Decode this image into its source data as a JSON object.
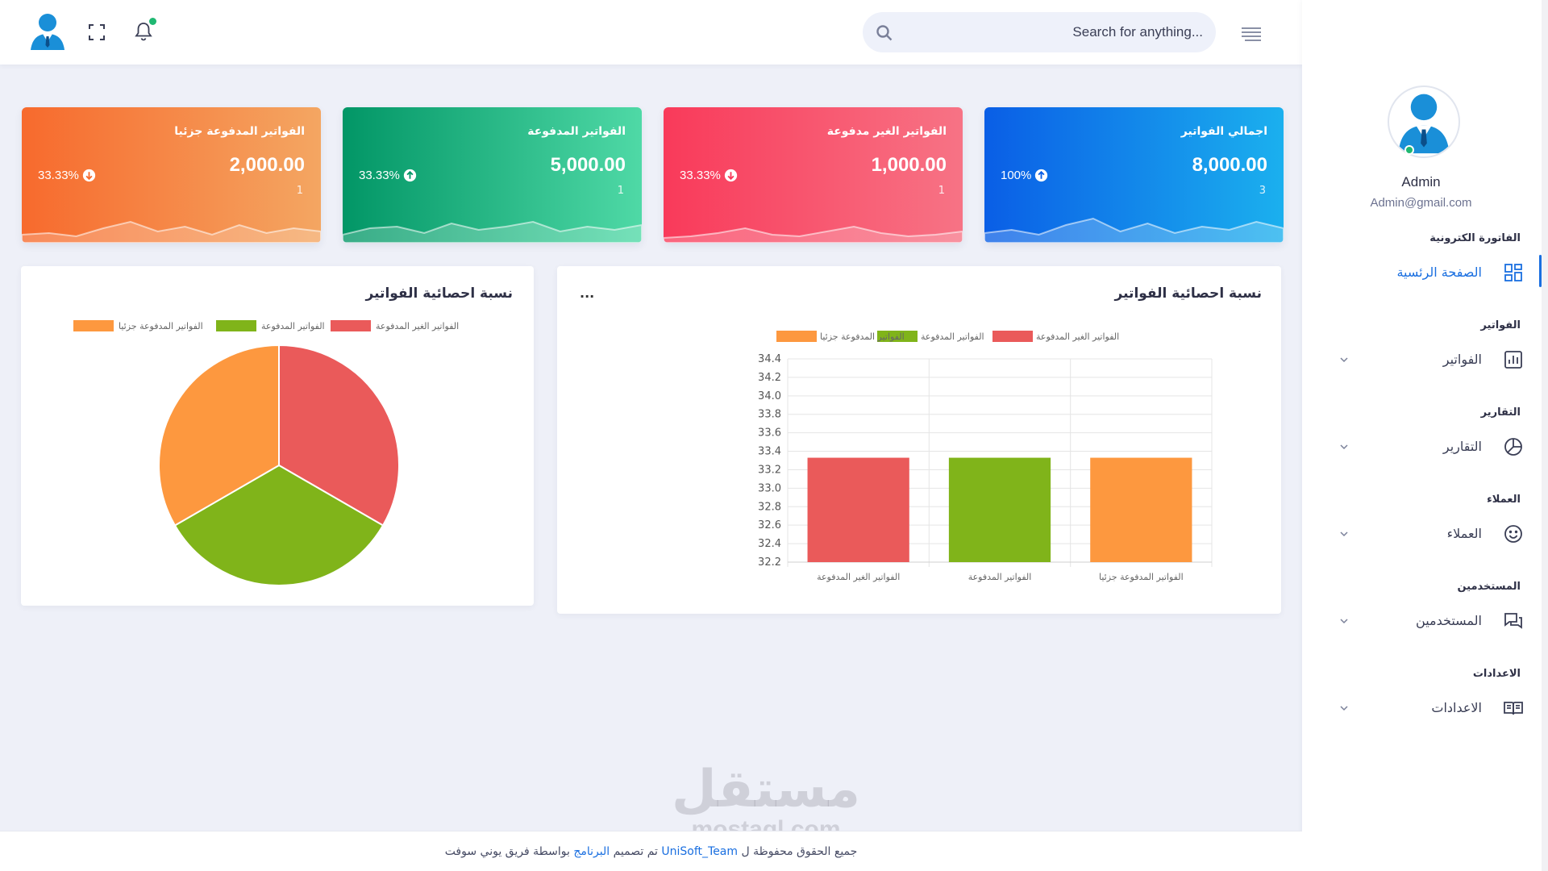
{
  "header": {
    "search_placeholder": "Search for anything...",
    "icons": [
      "avatar-icon",
      "fullscreen-icon",
      "bell-icon",
      "search-icon",
      "hamburger-icon"
    ]
  },
  "cards": [
    {
      "title": "اجمالي الفواتير",
      "amount": "8,000.00",
      "count": "3",
      "percent": "100%",
      "trend": "up",
      "gradient": [
        "#0a5ee6",
        "#1bb0ee"
      ],
      "wave": [
        12,
        16,
        10,
        22,
        30,
        14,
        24,
        12,
        20,
        16,
        26,
        18
      ]
    },
    {
      "title": "الفواتير الغير مدفوعة",
      "amount": "1,000.00",
      "count": "1",
      "percent": "33.33%",
      "trend": "down",
      "gradient": [
        "#f93a5a",
        "#f77385"
      ],
      "wave": [
        6,
        8,
        12,
        18,
        10,
        8,
        14,
        20,
        12,
        8,
        10,
        14
      ]
    },
    {
      "title": "الفواتير المدفوعة",
      "amount": "5,000.00",
      "count": "1",
      "percent": "33.33%",
      "trend": "up",
      "gradient": [
        "#029666",
        "#4fd9a6"
      ],
      "wave": [
        10,
        18,
        20,
        12,
        24,
        16,
        20,
        26,
        14,
        20,
        16,
        22
      ]
    },
    {
      "title": "الفواتير المدفوعة جزئيا",
      "amount": "2,000.00",
      "count": "1",
      "percent": "33.33%",
      "trend": "down",
      "gradient": [
        "#f76a2d",
        "#f4a662"
      ],
      "wave": [
        10,
        12,
        8,
        18,
        26,
        14,
        20,
        10,
        22,
        12,
        18,
        14
      ]
    }
  ],
  "bar_panel": {
    "title": "نسبة احصائية الفواتير",
    "more": "..."
  },
  "pie_panel": {
    "title": "نسبة احصائية الفواتير"
  },
  "chart_data": [
    {
      "type": "bar",
      "categories": [
        "الفواتير الغير المدفوعة",
        "الفواتير المدفوعة",
        "الفواتير المدفوعة جزئيا"
      ],
      "values": [
        33.33,
        33.33,
        33.33
      ],
      "colors": [
        "#ea5a5a",
        "#80b41a",
        "#fd983f"
      ],
      "legend": [
        "الفواتير الغير المدفوعة",
        "الفواتير المدفوعة",
        "الفواتير المدفوعة جزئيا"
      ],
      "legend_position": "top",
      "yticks": [
        "34.4",
        "34.2",
        "34.0",
        "33.8",
        "33.6",
        "33.4",
        "33.2",
        "33.0",
        "32.8",
        "32.6",
        "32.4",
        "32.2"
      ],
      "ylim": [
        32.2,
        34.4
      ],
      "grid": true
    },
    {
      "type": "pie",
      "labels": [
        "الفواتير الغير المدفوعة",
        "الفواتير المدفوعة",
        "الفواتير المدفوعة جزئيا"
      ],
      "values": [
        33.33,
        33.33,
        33.33
      ],
      "colors": [
        "#ea5a5a",
        "#80b41a",
        "#fd983f"
      ],
      "legend": [
        "الفواتير الغير المدفوعة",
        "الفواتير المدفوعة",
        "الفواتير المدفوعة جزئيا"
      ],
      "legend_position": "top"
    }
  ],
  "sidebar": {
    "user": {
      "name": "Admin",
      "email": "Admin@gmail.com"
    },
    "sections": [
      {
        "title": "الفاتورة الكترونية",
        "item": "الصفحة الرئسية",
        "icon": "dashboard-icon",
        "active": true,
        "expandable": false
      },
      {
        "title": "الفواتير",
        "item": "الفواتير",
        "icon": "bar-chart-icon",
        "active": false,
        "expandable": true
      },
      {
        "title": "التقارير",
        "item": "التقارير",
        "icon": "pie-chart-icon",
        "active": false,
        "expandable": true
      },
      {
        "title": "العملاء",
        "item": "العملاء",
        "icon": "smiley-icon",
        "active": false,
        "expandable": true
      },
      {
        "title": "المستخدمين",
        "item": "المستخدمين",
        "icon": "chat-icon",
        "active": false,
        "expandable": true
      },
      {
        "title": "الاعدادات",
        "item": "الاعدادات",
        "icon": "book-icon",
        "active": false,
        "expandable": true
      }
    ]
  },
  "footer": {
    "part1": "جميع الحقوق محفوظة ل",
    "brand": "UniSoft_Team",
    "part2": "تم تصميم",
    "link": "البرنامج",
    "part3": "بواسطة فريق يوني سوفت"
  },
  "watermark": {
    "arabic": "مستقل",
    "latin": "mostaql.com"
  },
  "colors": {
    "accent": "#1a6fe0",
    "online": "#1fb872",
    "background": "#eef0f8"
  }
}
